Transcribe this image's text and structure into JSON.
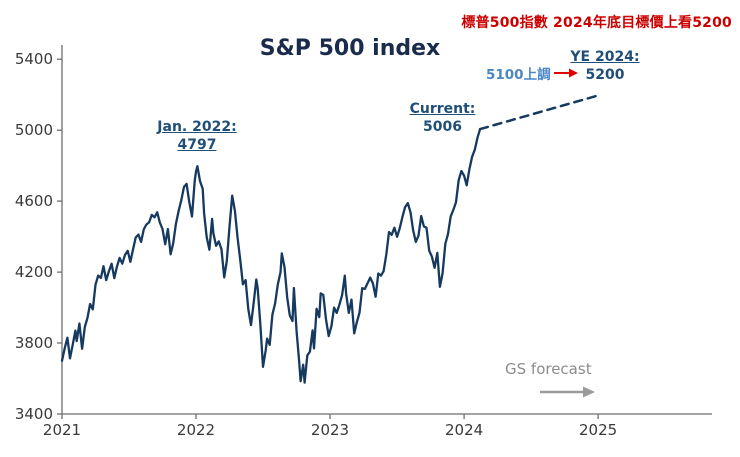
{
  "note": {
    "text": "標普500指數 2024年底目標價上看5200",
    "color": "#cc0000"
  },
  "colors": {
    "line": "#16395f",
    "title": "#1b2b4b",
    "annotation_navy": "#1f4e79",
    "revision_blue": "#4a86c8",
    "arrow_red": "#e00000",
    "forecast_gray": "#8c8c8c",
    "axis": "#6e6e6e"
  },
  "chart_data": {
    "type": "line",
    "title": "S&P 500 index",
    "xlabel": "",
    "ylabel": "",
    "xlim": [
      2021,
      2025.85
    ],
    "ylim": [
      3400,
      5480
    ],
    "x_ticks": [
      2021,
      2022,
      2023,
      2024,
      2025
    ],
    "y_ticks": [
      3400,
      3800,
      4200,
      4600,
      5000,
      5400
    ],
    "grid": false,
    "legend": "none",
    "series": [
      {
        "name": "sp500-history",
        "color": "#16395f",
        "width": 2.3,
        "dash": "",
        "points": [
          [
            2021.0,
            3700
          ],
          [
            2021.02,
            3770
          ],
          [
            2021.04,
            3830
          ],
          [
            2021.06,
            3714
          ],
          [
            2021.08,
            3790
          ],
          [
            2021.1,
            3870
          ],
          [
            2021.11,
            3811
          ],
          [
            2021.13,
            3910
          ],
          [
            2021.15,
            3768
          ],
          [
            2021.17,
            3890
          ],
          [
            2021.19,
            3943
          ],
          [
            2021.21,
            4020
          ],
          [
            2021.23,
            3990
          ],
          [
            2021.25,
            4129
          ],
          [
            2021.27,
            4180
          ],
          [
            2021.29,
            4167
          ],
          [
            2021.31,
            4233
          ],
          [
            2021.33,
            4155
          ],
          [
            2021.35,
            4204
          ],
          [
            2021.37,
            4247
          ],
          [
            2021.39,
            4166
          ],
          [
            2021.41,
            4230
          ],
          [
            2021.43,
            4280
          ],
          [
            2021.45,
            4247
          ],
          [
            2021.47,
            4297
          ],
          [
            2021.49,
            4320
          ],
          [
            2021.51,
            4258
          ],
          [
            2021.53,
            4327
          ],
          [
            2021.55,
            4395
          ],
          [
            2021.57,
            4411
          ],
          [
            2021.59,
            4370
          ],
          [
            2021.61,
            4441
          ],
          [
            2021.63,
            4468
          ],
          [
            2021.65,
            4480
          ],
          [
            2021.67,
            4523
          ],
          [
            2021.69,
            4509
          ],
          [
            2021.71,
            4537
          ],
          [
            2021.73,
            4480
          ],
          [
            2021.75,
            4443
          ],
          [
            2021.77,
            4357
          ],
          [
            2021.79,
            4443
          ],
          [
            2021.81,
            4300
          ],
          [
            2021.83,
            4363
          ],
          [
            2021.85,
            4471
          ],
          [
            2021.87,
            4544
          ],
          [
            2021.89,
            4605
          ],
          [
            2021.91,
            4680
          ],
          [
            2021.93,
            4697
          ],
          [
            2021.95,
            4594
          ],
          [
            2021.97,
            4513
          ],
          [
            2021.99,
            4712
          ],
          [
            2022.0,
            4766
          ],
          [
            2022.01,
            4797
          ],
          [
            2022.03,
            4713
          ],
          [
            2022.05,
            4670
          ],
          [
            2022.06,
            4532
          ],
          [
            2022.08,
            4397
          ],
          [
            2022.1,
            4326
          ],
          [
            2022.12,
            4500
          ],
          [
            2022.13,
            4418
          ],
          [
            2022.15,
            4348
          ],
          [
            2022.17,
            4373
          ],
          [
            2022.19,
            4328
          ],
          [
            2022.21,
            4170
          ],
          [
            2022.23,
            4263
          ],
          [
            2022.25,
            4456
          ],
          [
            2022.27,
            4631
          ],
          [
            2022.29,
            4545
          ],
          [
            2022.31,
            4392
          ],
          [
            2022.33,
            4271
          ],
          [
            2022.35,
            4131
          ],
          [
            2022.37,
            4155
          ],
          [
            2022.39,
            3991
          ],
          [
            2022.41,
            3901
          ],
          [
            2022.43,
            4023
          ],
          [
            2022.45,
            4158
          ],
          [
            2022.46,
            4108
          ],
          [
            2022.48,
            3900
          ],
          [
            2022.5,
            3666
          ],
          [
            2022.52,
            3759
          ],
          [
            2022.53,
            3825
          ],
          [
            2022.55,
            3790
          ],
          [
            2022.57,
            3961
          ],
          [
            2022.59,
            4023
          ],
          [
            2022.61,
            4130
          ],
          [
            2022.63,
            4199
          ],
          [
            2022.64,
            4305
          ],
          [
            2022.66,
            4228
          ],
          [
            2022.68,
            4057
          ],
          [
            2022.7,
            3955
          ],
          [
            2022.72,
            3924
          ],
          [
            2022.73,
            4110
          ],
          [
            2022.75,
            3873
          ],
          [
            2022.77,
            3693
          ],
          [
            2022.78,
            3585
          ],
          [
            2022.8,
            3678
          ],
          [
            2022.81,
            3577
          ],
          [
            2022.83,
            3730
          ],
          [
            2022.85,
            3752
          ],
          [
            2022.87,
            3871
          ],
          [
            2022.88,
            3770
          ],
          [
            2022.9,
            3993
          ],
          [
            2022.92,
            3946
          ],
          [
            2022.93,
            4080
          ],
          [
            2022.95,
            4071
          ],
          [
            2022.97,
            3934
          ],
          [
            2022.99,
            3839
          ],
          [
            2023.01,
            3895
          ],
          [
            2023.03,
            3999
          ],
          [
            2023.05,
            3970
          ],
          [
            2023.07,
            4016
          ],
          [
            2023.09,
            4070
          ],
          [
            2023.11,
            4180
          ],
          [
            2023.12,
            4079
          ],
          [
            2023.14,
            3970
          ],
          [
            2023.16,
            4045
          ],
          [
            2023.18,
            3855
          ],
          [
            2023.2,
            3917
          ],
          [
            2023.22,
            3971
          ],
          [
            2023.24,
            4109
          ],
          [
            2023.26,
            4105
          ],
          [
            2023.28,
            4138
          ],
          [
            2023.3,
            4169
          ],
          [
            2023.32,
            4136
          ],
          [
            2023.34,
            4061
          ],
          [
            2023.36,
            4192
          ],
          [
            2023.38,
            4180
          ],
          [
            2023.4,
            4205
          ],
          [
            2023.42,
            4299
          ],
          [
            2023.44,
            4426
          ],
          [
            2023.46,
            4410
          ],
          [
            2023.48,
            4450
          ],
          [
            2023.5,
            4399
          ],
          [
            2023.52,
            4447
          ],
          [
            2023.54,
            4510
          ],
          [
            2023.56,
            4566
          ],
          [
            2023.58,
            4589
          ],
          [
            2023.6,
            4537
          ],
          [
            2023.62,
            4437
          ],
          [
            2023.64,
            4370
          ],
          [
            2023.66,
            4405
          ],
          [
            2023.68,
            4516
          ],
          [
            2023.7,
            4457
          ],
          [
            2023.72,
            4450
          ],
          [
            2023.74,
            4320
          ],
          [
            2023.76,
            4288
          ],
          [
            2023.78,
            4224
          ],
          [
            2023.8,
            4308
          ],
          [
            2023.82,
            4117
          ],
          [
            2023.84,
            4194
          ],
          [
            2023.86,
            4358
          ],
          [
            2023.88,
            4415
          ],
          [
            2023.9,
            4514
          ],
          [
            2023.92,
            4550
          ],
          [
            2023.94,
            4594
          ],
          [
            2023.96,
            4719
          ],
          [
            2023.98,
            4770
          ],
          [
            2024.0,
            4743
          ],
          [
            2024.02,
            4689
          ],
          [
            2024.04,
            4780
          ],
          [
            2024.06,
            4850
          ],
          [
            2024.08,
            4890
          ],
          [
            2024.1,
            4958
          ],
          [
            2024.12,
            5006
          ]
        ]
      },
      {
        "name": "gs-forecast",
        "color": "#16395f",
        "width": 2.5,
        "dash": "8,6",
        "points": [
          [
            2024.12,
            5006
          ],
          [
            2025.02,
            5200
          ]
        ]
      }
    ],
    "annotations": {
      "jan2022": {
        "line1": "Jan. 2022:",
        "line2": "4797"
      },
      "current": {
        "line1": "Current:",
        "line2": "5006"
      },
      "ye2024": {
        "line1": "YE 2024:",
        "line2": "5200"
      },
      "revision": {
        "text": "5100上調"
      },
      "forecast": {
        "text": "GS forecast"
      }
    }
  }
}
